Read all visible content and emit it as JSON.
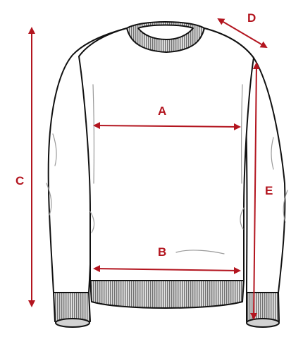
{
  "diagram": {
    "labels": {
      "a": "A",
      "b": "B",
      "c": "C",
      "d": "D",
      "e": "E"
    },
    "colors": {
      "measure": "#b3151f",
      "outline": "#111111",
      "rib_fill": "#d8d8d8",
      "fold": "#9a9a9a",
      "background": "#ffffff"
    }
  }
}
